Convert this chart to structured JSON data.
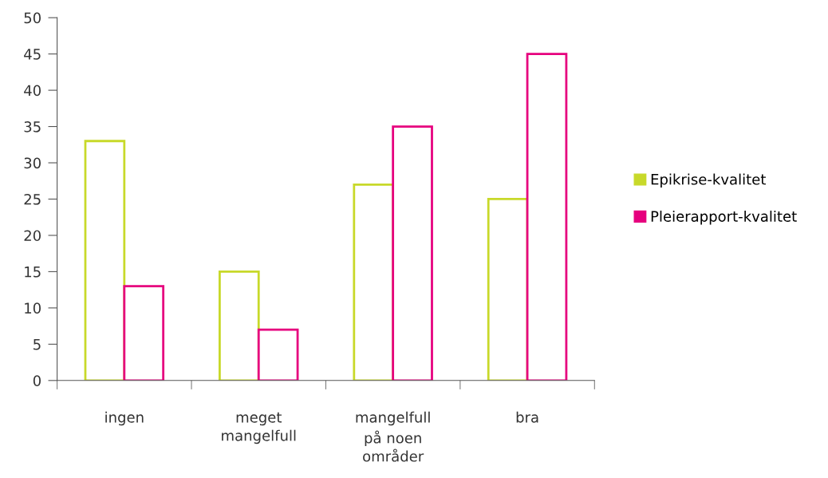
{
  "chart_data": {
    "type": "bar",
    "categories": [
      "ingen",
      "meget\nmangelfull",
      "mangelfull\npå noen\nområder",
      "bra"
    ],
    "series": [
      {
        "name": "Epikrise-kvalitet",
        "color": "#c8d92a",
        "values": [
          33,
          15,
          27,
          25
        ]
      },
      {
        "name": "Pleierapport-kvalitet",
        "color": "#e6007e",
        "values": [
          13,
          7,
          35,
          45
        ]
      }
    ],
    "ylim": [
      0,
      50
    ],
    "yticks": [
      0,
      5,
      10,
      15,
      20,
      25,
      30,
      35,
      40,
      45,
      50
    ],
    "grid": false,
    "legend": "right"
  }
}
